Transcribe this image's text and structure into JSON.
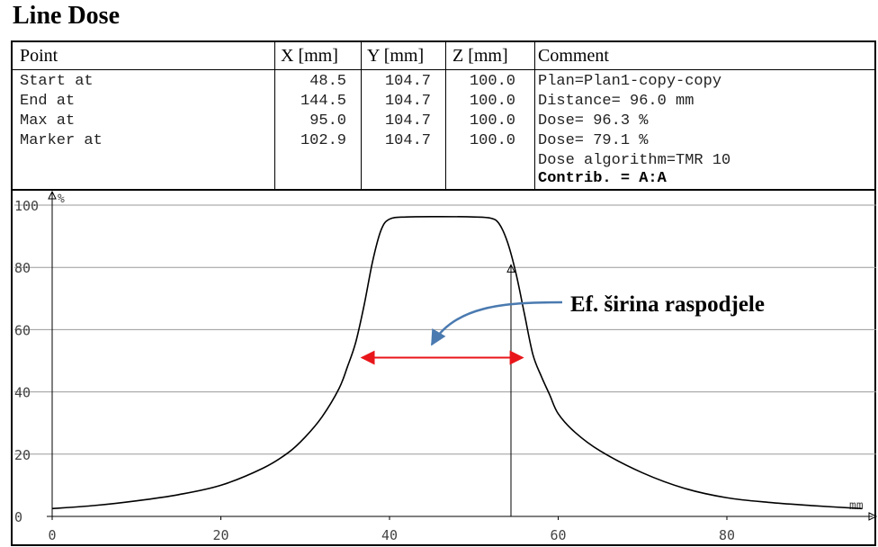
{
  "title": "Line Dose",
  "table": {
    "headers": [
      "Point",
      "X [mm]",
      "Y [mm]",
      "Z [mm]",
      "Comment"
    ],
    "rows": [
      {
        "point": "Start at",
        "x": "48.5",
        "y": "104.7",
        "z": "100.0",
        "comment": "Plan=Plan1-copy-copy"
      },
      {
        "point": "End at",
        "x": "144.5",
        "y": "104.7",
        "z": "100.0",
        "comment": "Distance= 96.0 mm"
      },
      {
        "point": "Max at",
        "x": "95.0",
        "y": "104.7",
        "z": "100.0",
        "comment": "Dose= 96.3 %"
      },
      {
        "point": "Marker at",
        "x": "102.9",
        "y": "104.7",
        "z": "100.0",
        "comment": "Dose= 79.1 %"
      }
    ],
    "extra_comments": [
      "Dose algorithm=TMR 10",
      "Contrib. = A:A"
    ]
  },
  "chart_data": {
    "type": "line",
    "xlabel": "mm",
    "ylabel": "%",
    "xlim": [
      0,
      96
    ],
    "ylim": [
      0,
      100
    ],
    "xticks": [
      "0",
      "20",
      "40",
      "60",
      "80"
    ],
    "yticks": [
      "0",
      "20",
      "40",
      "60",
      "80",
      "100"
    ],
    "grid": true,
    "series": [
      {
        "x": [
          0,
          5,
          10,
          15,
          20,
          25,
          28,
          30,
          32,
          34,
          35,
          36,
          37,
          38,
          39,
          40,
          42,
          46,
          50,
          52,
          53,
          54,
          55,
          56,
          57,
          58,
          59,
          60,
          62,
          65,
          70,
          75,
          80,
          85,
          90,
          96
        ],
        "y": [
          2.5,
          3.5,
          5,
          7,
          10,
          15.5,
          20.5,
          25.5,
          32,
          41,
          48,
          56,
          68,
          82,
          92,
          95.5,
          96.2,
          96.3,
          96.2,
          95.8,
          94,
          88,
          78,
          65,
          52,
          45,
          39,
          33,
          27,
          21,
          14,
          9,
          6,
          4.5,
          3.5,
          2.5
        ]
      }
    ],
    "marker": {
      "x": 54.4,
      "y": 79.1
    },
    "annotation": {
      "text": "Ef. širina raspodjele",
      "range": [
        36.5,
        56
      ]
    }
  },
  "colors": {
    "curve": "#000000",
    "arrow": "#e8161a",
    "pointer": "#4a7ab0",
    "grid": "#9a9a9a"
  }
}
